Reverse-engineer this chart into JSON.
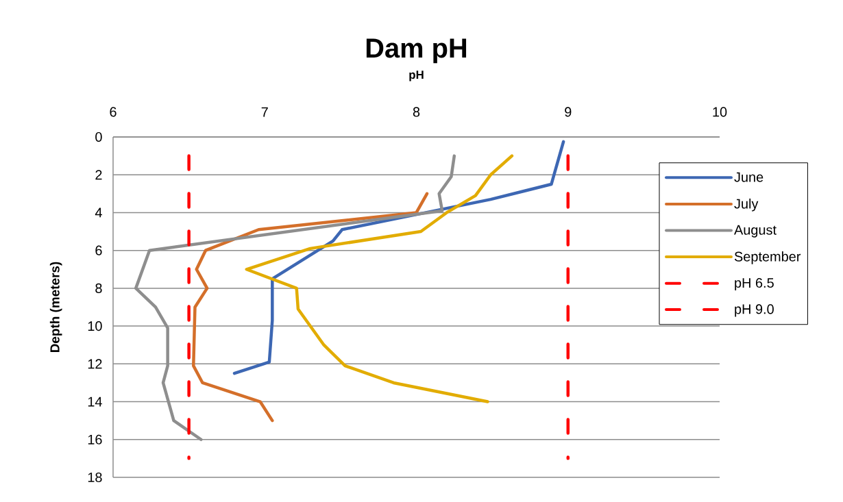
{
  "chart_data": {
    "type": "line",
    "title": "Dam pH",
    "xlabel": "pH",
    "ylabel": "Depth (meters)",
    "xlim": [
      6,
      10
    ],
    "xticks": [
      6,
      7,
      8,
      9,
      10
    ],
    "ylim": [
      18,
      0
    ],
    "yticks": [
      0,
      2,
      4,
      6,
      8,
      10,
      12,
      14,
      16,
      18
    ],
    "grid": "y",
    "legend": "right",
    "series": [
      {
        "name": "June",
        "color": "#3d67b3",
        "x": [
          8.97,
          8.89,
          8.49,
          7.51,
          7.45,
          7.05,
          7.05,
          7.03,
          6.8
        ],
        "values": [
          0.25,
          2.5,
          3.3,
          4.9,
          5.5,
          7.5,
          9.7,
          11.9,
          12.5
        ]
      },
      {
        "name": "July",
        "color": "#d46f2a",
        "x": [
          8.07,
          8.0,
          6.96,
          6.61,
          6.55,
          6.62,
          6.54,
          6.53,
          6.59,
          6.97,
          7.05
        ],
        "values": [
          3.0,
          4.0,
          4.9,
          6.0,
          7.0,
          8.0,
          9.0,
          12.1,
          13.0,
          14.0,
          15.0
        ]
      },
      {
        "name": "August",
        "color": "#8e8e8e",
        "x": [
          8.25,
          8.23,
          8.15,
          8.17,
          6.24,
          6.15,
          6.28,
          6.36,
          6.36,
          6.33,
          6.4,
          6.58
        ],
        "values": [
          1.0,
          2.1,
          3.0,
          3.9,
          6.0,
          8.0,
          9.0,
          10.1,
          12.1,
          13.0,
          15.0,
          16.0
        ]
      },
      {
        "name": "September",
        "color": "#e2ac00",
        "x": [
          8.63,
          8.49,
          8.39,
          8.2,
          8.03,
          7.3,
          6.88,
          7.21,
          7.22,
          7.39,
          7.53,
          7.85,
          8.47
        ],
        "values": [
          1.0,
          2.0,
          3.1,
          4.0,
          5.0,
          5.9,
          7.0,
          8.0,
          9.1,
          11.0,
          12.1,
          13.0,
          14.0
        ]
      },
      {
        "name": "pH 6.5",
        "color": "#ff0000",
        "line_style": "dashed",
        "x": [
          6.5,
          6.5
        ],
        "values": [
          1,
          17
        ]
      },
      {
        "name": "pH 9.0",
        "color": "#ff0000",
        "line_style": "dashed",
        "x": [
          9.0,
          9.0
        ],
        "values": [
          1,
          17
        ]
      }
    ]
  }
}
